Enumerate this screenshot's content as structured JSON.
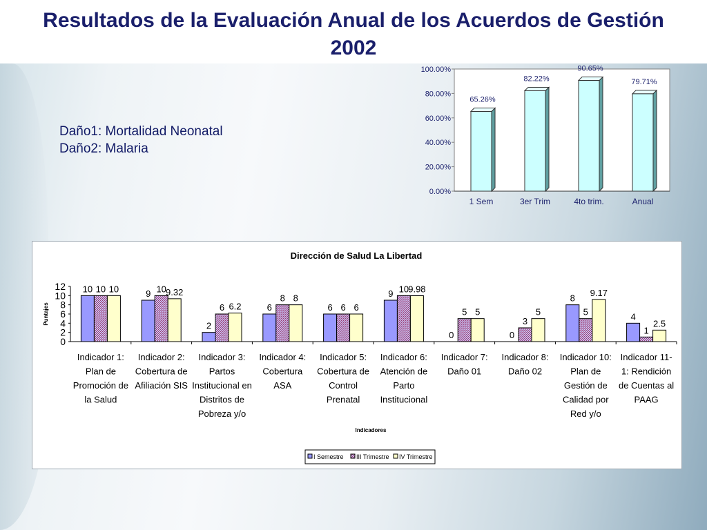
{
  "title": "Resultados de la Evaluación Anual de los Acuerdos de Gestión 2002",
  "notes": [
    "Daño1: Mortalidad Neonatal",
    "Daño2: Malaria"
  ],
  "chart_data": [
    {
      "type": "bar",
      "categories": [
        "1 Sem",
        "3er Trim",
        "4to trim.",
        "Anual"
      ],
      "values": [
        65.26,
        82.22,
        90.65,
        79.71
      ],
      "value_labels": [
        "65.26%",
        "82.22%",
        "90.65%",
        "79.71%"
      ],
      "ylim": [
        0,
        100
      ],
      "yticks": [
        "0.00%",
        "20.00%",
        "40.00%",
        "60.00%",
        "80.00%",
        "100.00%"
      ],
      "bar_color": "#ccffff",
      "grid": false
    },
    {
      "type": "bar",
      "title": "Dirección de Salud La Libertad",
      "xlabel": "Indicadores",
      "ylabel": "Puntajes",
      "ylim": [
        0,
        12
      ],
      "yticks": [
        "0",
        "2",
        "4",
        "6",
        "8",
        "10",
        "12"
      ],
      "categories": [
        [
          "Indicador 1:",
          "Plan de",
          "Promoción de",
          "la Salud"
        ],
        [
          "Indicador 2:",
          "Cobertura de",
          "Afiliación SIS"
        ],
        [
          "Indicador 3:",
          "Partos",
          "Institucional en",
          "Distritos de",
          "Pobreza y/o"
        ],
        [
          "Indicador 4:",
          "Cobertura",
          "ASA"
        ],
        [
          "Indicador 5:",
          "Cobertura de",
          "Control",
          "Prenatal"
        ],
        [
          "Indicador 6:",
          "Atención de",
          "Parto",
          "Institucional"
        ],
        [
          "Indicador 7:",
          "Daño 01"
        ],
        [
          "Indicador 8:",
          "Daño 02"
        ],
        [
          "Indicador 10:",
          "Plan de",
          "Gestión de",
          "Calidad por",
          "Red y/o"
        ],
        [
          "Indicador 11-",
          "1: Rendición",
          "de Cuentas al",
          "PAAG"
        ]
      ],
      "series": [
        {
          "name": "I Semestre",
          "color": "#9999ff",
          "values": [
            10,
            9,
            2,
            6,
            6,
            9,
            0,
            0,
            8,
            4
          ],
          "labels": [
            "10",
            "9",
            "2",
            "6",
            "6",
            "9",
            "0",
            "0",
            "8",
            "4"
          ]
        },
        {
          "name": "III Trimestre",
          "color": "#993366",
          "values": [
            10,
            10,
            6,
            8,
            6,
            10,
            5,
            3,
            5,
            1
          ],
          "labels": [
            "10",
            "10",
            "6",
            "8",
            "6",
            "10",
            "5",
            "3",
            "5",
            "1"
          ]
        },
        {
          "name": "IV Trimestre",
          "color": "#ffffcc",
          "values": [
            10,
            9.32,
            6.2,
            8,
            6,
            9.98,
            5,
            5,
            9.17,
            2.5
          ],
          "labels": [
            "10",
            "9.32",
            "6.2",
            "8",
            "6",
            "9.98",
            "5",
            "5",
            "9.17",
            "2.5"
          ]
        }
      ],
      "legend_position": "bottom"
    }
  ]
}
